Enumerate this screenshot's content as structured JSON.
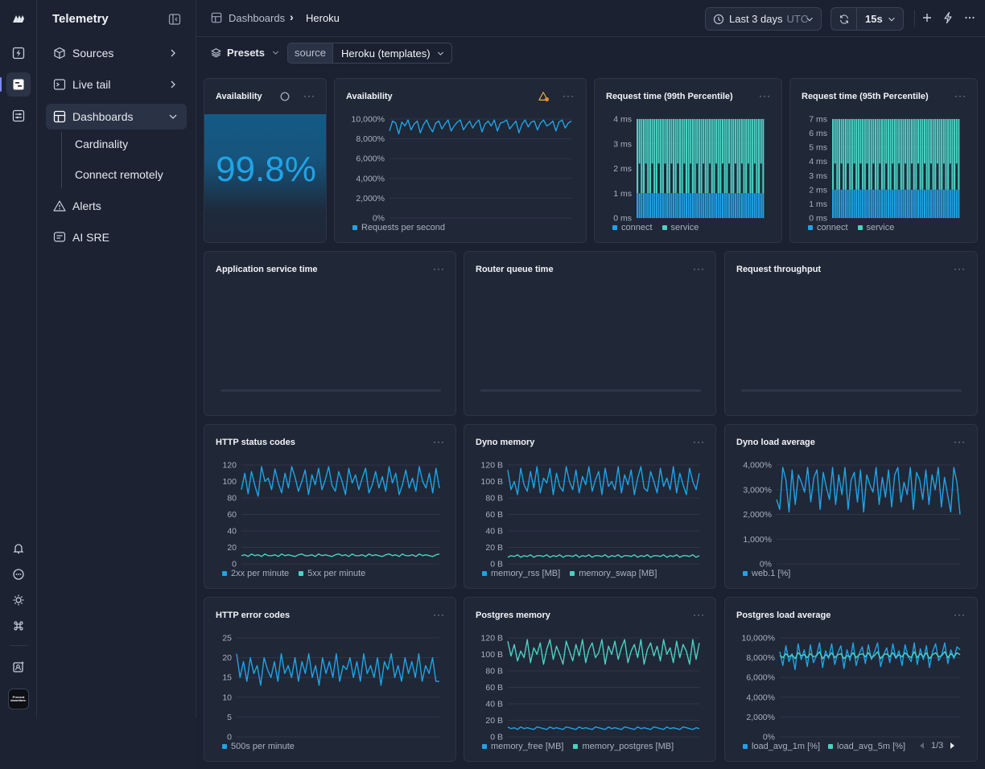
{
  "app": {
    "title": "Telemetry"
  },
  "colors": {
    "accent": "#1fa3e6",
    "accent2": "#4ad1c4",
    "bg": "#1b2130"
  },
  "rail": {
    "icons": [
      "logo-icon",
      "bolt-icon",
      "dashboards-icon",
      "settings-sliders-icon",
      "bell-icon",
      "chat-icon",
      "sun-icon",
      "command-icon",
      "profile-badge-icon"
    ],
    "avatar_text": "Prevent downtime."
  },
  "sidebar": {
    "items": [
      {
        "label": "Sources",
        "icon": "cube-icon"
      },
      {
        "label": "Live tail",
        "icon": "terminal-icon"
      },
      {
        "label": "Dashboards",
        "icon": "dashboard-icon"
      },
      {
        "label": "Alerts",
        "icon": "warning-icon"
      },
      {
        "label": "AI SRE",
        "icon": "chat-box-icon"
      }
    ],
    "sub_items": [
      {
        "label": "Cardinality"
      },
      {
        "label": "Connect remotely"
      }
    ]
  },
  "header": {
    "breadcrumb_root": "Dashboards",
    "breadcrumb_sep": "›",
    "breadcrumb_current": "Heroku",
    "time_range": "Last 3 days",
    "timezone": "UTC",
    "refresh_interval": "15s"
  },
  "filters": {
    "presets_label": "Presets",
    "source_label": "source",
    "source_value": "Heroku (templates)"
  },
  "panels": {
    "availability_stat": {
      "title": "Availability",
      "value": "99.8%"
    },
    "availability_chart": {
      "title": "Availability",
      "legend": [
        "Requests per second"
      ]
    },
    "req99": {
      "title": "Request time (99th Percentile)",
      "legend": [
        "connect",
        "service"
      ]
    },
    "req95": {
      "title": "Request time (95th Percentile)",
      "legend": [
        "connect",
        "service"
      ]
    },
    "app_service": {
      "title": "Application service time"
    },
    "router_queue": {
      "title": "Router queue time"
    },
    "throughput": {
      "title": "Request throughput"
    },
    "http_status": {
      "title": "HTTP status codes",
      "legend": [
        "2xx per minute",
        "5xx per minute"
      ]
    },
    "dyno_memory": {
      "title": "Dyno memory",
      "legend": [
        "memory_rss [MB]",
        "memory_swap [MB]"
      ]
    },
    "dyno_load": {
      "title": "Dyno load average",
      "legend": [
        "web.1 [%]"
      ]
    },
    "http_error": {
      "title": "HTTP error codes",
      "legend": [
        "500s per minute"
      ]
    },
    "pg_memory": {
      "title": "Postgres memory",
      "legend": [
        "memory_free [MB]",
        "memory_postgres [MB]"
      ]
    },
    "pg_load": {
      "title": "Postgres load average",
      "legend": [
        "load_avg_1m [%]",
        "load_avg_5m [%]"
      ],
      "pager": "1/3"
    }
  },
  "chart_data": [
    {
      "id": "availability_chart",
      "type": "line",
      "title": "Availability",
      "y_ticks": [
        "10,000%",
        "8,000%",
        "6,000%",
        "4,000%",
        "2,000%",
        "0%"
      ],
      "ylim": [
        0,
        10000
      ],
      "series": [
        {
          "name": "Requests per second",
          "values": [
            8800,
            9800,
            9600,
            8500,
            9700,
            9300,
            9900,
            8900,
            9500,
            9800,
            8600,
            9400,
            9900,
            9200,
            8700,
            9600,
            9800,
            9000,
            9500,
            9900,
            8800,
            9300,
            9700,
            9900,
            8900,
            9400,
            9800,
            9100,
            9600,
            9900,
            8700,
            9500,
            9800,
            9300,
            9900,
            8800,
            9600,
            9700,
            9900,
            9000,
            9400,
            9800,
            8600,
            9500,
            9900,
            9200,
            9700,
            9800,
            8900,
            9600,
            9900,
            9300,
            9500,
            9800,
            8800,
            9700,
            9900,
            9100,
            9600,
            9800
          ]
        }
      ]
    },
    {
      "id": "req99",
      "type": "bar",
      "title": "Request time (99th Percentile)",
      "y_ticks": [
        "4 ms",
        "3 ms",
        "2 ms",
        "1 ms",
        "0 ms"
      ],
      "ylim": [
        0,
        4
      ],
      "series": [
        {
          "name": "connect",
          "values_const": 1
        },
        {
          "name": "service",
          "values_const": 4
        }
      ]
    },
    {
      "id": "req95",
      "type": "bar",
      "title": "Request time (95th Percentile)",
      "y_ticks": [
        "7 ms",
        "6 ms",
        "5 ms",
        "4 ms",
        "3 ms",
        "2 ms",
        "1 ms",
        "0 ms"
      ],
      "ylim": [
        0,
        7
      ],
      "series": [
        {
          "name": "connect",
          "values_const": 2
        },
        {
          "name": "service",
          "values_const": 7
        }
      ]
    },
    {
      "id": "http_status",
      "type": "line",
      "title": "HTTP status codes",
      "y_ticks": [
        "120",
        "100",
        "80",
        "60",
        "40",
        "20",
        "0"
      ],
      "ylim": [
        0,
        120
      ],
      "series": [
        {
          "name": "2xx per minute",
          "values": [
            90,
            110,
            85,
            112,
            95,
            82,
            118,
            100,
            104,
            90,
            115,
            98,
            86,
            110,
            92,
            118,
            105,
            88,
            100,
            114,
            84,
            108,
            96,
            116,
            90,
            102,
            118,
            95,
            88,
            112,
            100,
            84,
            116,
            98,
            108,
            90,
            104,
            116,
            86,
            96,
            112,
            92,
            106,
            88,
            118,
            98,
            110,
            84,
            96,
            114,
            92,
            104,
            88,
            118,
            100,
            92,
            110,
            86,
            116,
            92
          ]
        },
        {
          "name": "5xx per minute",
          "values": [
            10,
            11,
            9,
            12,
            10,
            11,
            9,
            12,
            10,
            10,
            11,
            9,
            12,
            10,
            11,
            10,
            9,
            11,
            12,
            10,
            10,
            11,
            9,
            12,
            10,
            11,
            10,
            9,
            11,
            12,
            10,
            11,
            9,
            12,
            10,
            10,
            11,
            9,
            12,
            10,
            11,
            10,
            9,
            11,
            12,
            10,
            11,
            9,
            12,
            10,
            10,
            11,
            9,
            12,
            10,
            11,
            10,
            9,
            11,
            12
          ]
        }
      ]
    },
    {
      "id": "dyno_memory",
      "type": "line",
      "title": "Dyno memory",
      "y_ticks": [
        "120 B",
        "100 B",
        "80 B",
        "60 B",
        "40 B",
        "20 B",
        "0 B"
      ],
      "ylim": [
        0,
        120
      ],
      "series": [
        {
          "name": "memory_rss [MB]",
          "values": [
            114,
            90,
            100,
            84,
            116,
            96,
            88,
            112,
            92,
            118,
            86,
            104,
            98,
            116,
            84,
            110,
            94,
            88,
            118,
            100,
            90,
            114,
            86,
            106,
            96,
            118,
            88,
            102,
            112,
            84,
            116,
            94,
            100,
            90,
            118,
            86,
            108,
            96,
            114,
            84,
            104,
            118,
            92,
            88,
            112,
            100,
            86,
            116,
            94,
            104,
            90,
            118,
            86,
            110,
            96,
            84,
            116,
            100,
            90,
            110
          ]
        },
        {
          "name": "memory_swap [MB]",
          "values": [
            8,
            10,
            9,
            11,
            8,
            10,
            9,
            11,
            8,
            10,
            10,
            9,
            11,
            8,
            10,
            9,
            11,
            8,
            10,
            10,
            9,
            11,
            8,
            10,
            9,
            11,
            8,
            10,
            10,
            9,
            11,
            8,
            10,
            9,
            11,
            8,
            10,
            10,
            9,
            11,
            8,
            10,
            9,
            11,
            8,
            10,
            10,
            9,
            11,
            8,
            10,
            9,
            11,
            8,
            10,
            10,
            9,
            11,
            8,
            10
          ]
        }
      ]
    },
    {
      "id": "dyno_load",
      "type": "line",
      "title": "Dyno load average",
      "y_ticks": [
        "4,000%",
        "3,000%",
        "2,000%",
        "1,000%",
        "0%"
      ],
      "ylim": [
        0,
        4000
      ],
      "series": [
        {
          "name": "web.1 [%]",
          "values": [
            2600,
            2200,
            3900,
            3400,
            2100,
            3800,
            2400,
            3600,
            3300,
            2900,
            3900,
            2500,
            3500,
            3800,
            2200,
            3700,
            3100,
            2600,
            3900,
            2400,
            3600,
            2800,
            3900,
            2200,
            3400,
            3700,
            2500,
            3800,
            2100,
            3600,
            3200,
            2900,
            3900,
            2400,
            3500,
            2700,
            3800,
            2300,
            3600,
            3900,
            2500,
            3300,
            2800,
            3900,
            2200,
            3700,
            3400,
            2600,
            3800,
            2400,
            3600,
            3000,
            3900,
            2300,
            3500,
            2800,
            2100,
            3900,
            3300,
            2000
          ]
        }
      ]
    },
    {
      "id": "http_error",
      "type": "line",
      "title": "HTTP error codes",
      "y_ticks": [
        "25",
        "20",
        "15",
        "10",
        "5",
        "0"
      ],
      "ylim": [
        0,
        25
      ],
      "series": [
        {
          "name": "500s per minute",
          "values": [
            21,
            15,
            19,
            14,
            20,
            16,
            18,
            13,
            20,
            17,
            15,
            19,
            14,
            21,
            16,
            18,
            15,
            20,
            14,
            19,
            16,
            21,
            15,
            18,
            13,
            20,
            16,
            19,
            15,
            21,
            14,
            18,
            17,
            20,
            15,
            19,
            14,
            21,
            16,
            18,
            15,
            20,
            13,
            19,
            17,
            21,
            15,
            18,
            14,
            20,
            16,
            19,
            15,
            21,
            14,
            18,
            16,
            20,
            14,
            14
          ]
        }
      ]
    },
    {
      "id": "pg_memory",
      "type": "line",
      "title": "Postgres memory",
      "y_ticks": [
        "120 B",
        "100 B",
        "80 B",
        "60 B",
        "40 B",
        "20 B",
        "0 B"
      ],
      "ylim": [
        0,
        120
      ],
      "series": [
        {
          "name": "memory_free [MB]",
          "values": [
            12,
            10,
            11,
            9,
            12,
            10,
            11,
            10,
            9,
            12,
            11,
            10,
            9,
            12,
            10,
            11,
            10,
            9,
            12,
            11,
            10,
            9,
            12,
            10,
            11,
            10,
            9,
            12,
            11,
            10,
            9,
            12,
            10,
            11,
            10,
            9,
            12,
            11,
            10,
            9,
            12,
            10,
            11,
            10,
            9,
            12,
            11,
            10,
            9,
            12,
            10,
            11,
            10,
            9,
            12,
            11,
            10,
            9,
            11,
            10
          ]
        },
        {
          "name": "memory_postgres [MB]",
          "values": [
            116,
            98,
            112,
            92,
            104,
            96,
            118,
            90,
            108,
            100,
            114,
            88,
            106,
            118,
            94,
            110,
            100,
            88,
            116,
            104,
            92,
            112,
            98,
            118,
            90,
            106,
            114,
            96,
            102,
            118,
            88,
            110,
            100,
            116,
            94,
            108,
            118,
            90,
            104,
            112,
            96,
            118,
            88,
            106,
            114,
            98,
            110,
            92,
            118,
            100,
            108,
            90,
            116,
            96,
            112,
            104,
            88,
            118,
            94,
            114
          ]
        }
      ]
    },
    {
      "id": "pg_load",
      "type": "line",
      "title": "Postgres load average",
      "y_ticks": [
        "10,000%",
        "8,000%",
        "6,000%",
        "4,000%",
        "2,000%",
        "0%"
      ],
      "ylim": [
        0,
        10000
      ],
      "series": [
        {
          "name": "load_avg_1m [%]",
          "values": [
            8600,
            7200,
            9200,
            7600,
            8400,
            6800,
            9400,
            7800,
            8800,
            7100,
            9300,
            7500,
            8200,
            9500,
            7000,
            8700,
            7900,
            9400,
            7300,
            8500,
            9200,
            6900,
            8800,
            7700,
            9500,
            7200,
            8400,
            9100,
            7400,
            9300,
            7800,
            8600,
            9500,
            7100,
            8300,
            9000,
            7500,
            9400,
            7900,
            8700,
            7200,
            9300,
            8100,
            7600,
            9500,
            7300,
            8900,
            7800,
            9200,
            7000,
            8600,
            9400,
            7700,
            8300,
            9500,
            7400,
            8800,
            7900,
            9100,
            8800
          ]
        },
        {
          "name": "load_avg_5m [%]",
          "values": [
            8200,
            8000,
            8400,
            8100,
            8300,
            7900,
            8500,
            8200,
            8300,
            8000,
            8400,
            8100,
            8200,
            8600,
            7900,
            8300,
            8100,
            8500,
            8000,
            8300,
            8400,
            7900,
            8200,
            8100,
            8500,
            8000,
            8300,
            8400,
            8100,
            8500,
            8000,
            8200,
            8600,
            7900,
            8300,
            8400,
            8100,
            8500,
            8000,
            8300,
            8100,
            8500,
            8200,
            8000,
            8600,
            8000,
            8400,
            8100,
            8500,
            7900,
            8300,
            8500,
            8100,
            8200,
            8600,
            8000,
            8400,
            8100,
            8500,
            8300
          ]
        }
      ]
    }
  ]
}
